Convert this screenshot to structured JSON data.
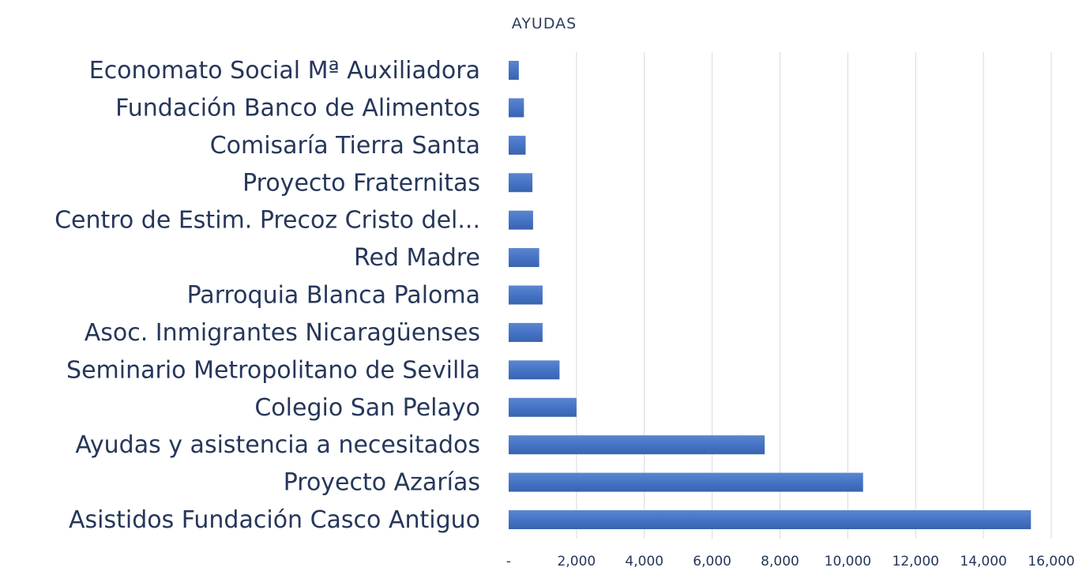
{
  "chart_data": {
    "type": "bar",
    "orientation": "horizontal",
    "title": "AYUDAS",
    "xlabel": "",
    "ylabel": "",
    "xlim": [
      0,
      16000
    ],
    "grid": true,
    "legend": "none",
    "bar_color": "#4472c4",
    "x_tick_labels": [
      "-",
      "2,000",
      "4,000",
      "6,000",
      "8,000",
      "10,000",
      "12,000",
      "14,000",
      "16,000"
    ],
    "x_ticks": [
      0,
      2000,
      4000,
      6000,
      8000,
      10000,
      12000,
      14000,
      16000
    ],
    "categories": [
      "Economato Social Mª Auxiliadora",
      "Fundación Banco de Alimentos",
      "Comisaría Tierra Santa",
      "Proyecto Fraternitas",
      "Centro de Estim. Precoz Cristo del...",
      "Red Madre",
      "Parroquia Blanca Paloma",
      "Asoc. Inmigrantes Nicaragüenses",
      "Seminario Metropolitano de Sevilla",
      "Colegio San Pelayo",
      "Ayudas y asistencia a necesitados",
      "Proyecto Azarías",
      "Asistidos Fundación Casco Antiguo"
    ],
    "values": [
      300,
      450,
      500,
      700,
      720,
      900,
      1000,
      1000,
      1500,
      2000,
      7550,
      10450,
      15400
    ]
  }
}
